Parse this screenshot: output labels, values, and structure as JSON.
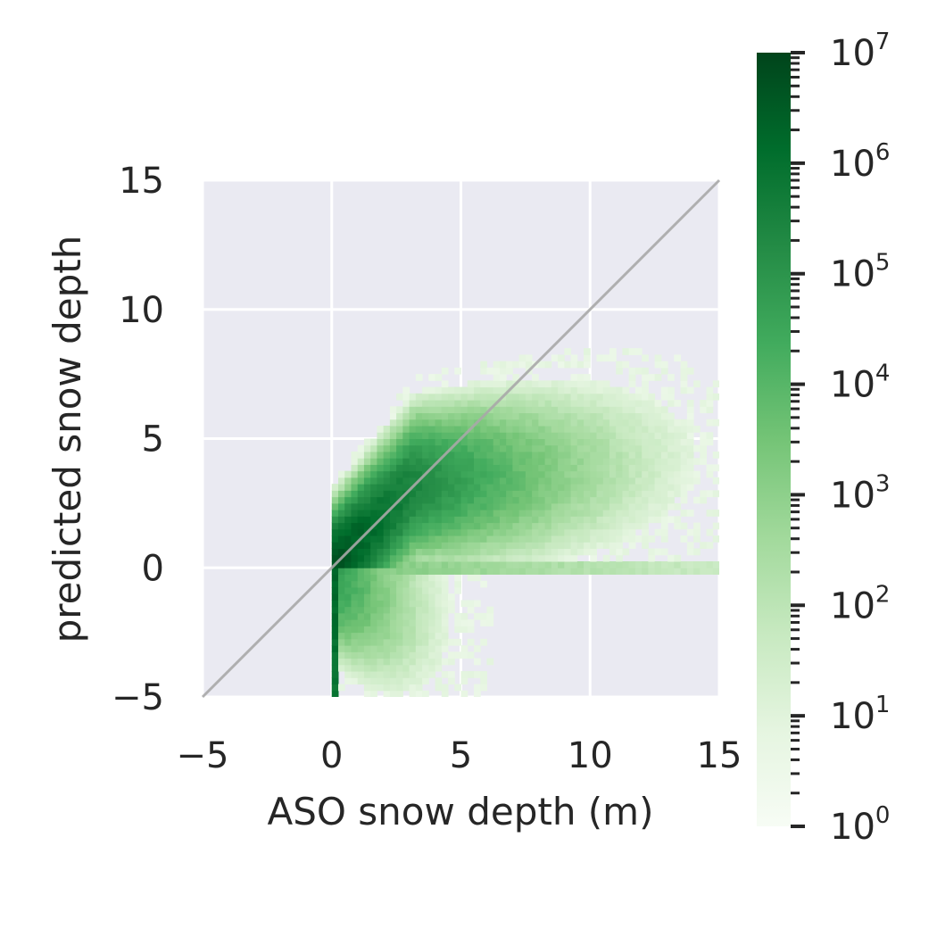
{
  "chart_data": {
    "type": "heatmap",
    "subtype": "2d-histogram",
    "title": "",
    "xlabel": "ASO snow depth (m)",
    "ylabel": "predicted snow depth",
    "xlim": [
      -5,
      15
    ],
    "ylim": [
      -5,
      15
    ],
    "xticks": [
      "−5",
      "0",
      "5",
      "10",
      "15"
    ],
    "yticks": [
      "−5",
      "0",
      "5",
      "10",
      "15"
    ],
    "xtick_values": [
      -5,
      0,
      5,
      10,
      15
    ],
    "ytick_values": [
      -5,
      0,
      5,
      10,
      15
    ],
    "grid": true,
    "reference_line": {
      "type": "1:1",
      "x": [
        -5,
        15
      ],
      "y": [
        -5,
        15
      ],
      "color": "#a9a9a9"
    },
    "colormap": "Greens",
    "colorbar": {
      "scale": "log",
      "range": [
        1,
        10000000
      ],
      "tick_bases": [
        "10",
        "10",
        "10",
        "10",
        "10",
        "10",
        "10",
        "10"
      ],
      "tick_exponents": [
        "0",
        "1",
        "2",
        "3",
        "4",
        "5",
        "6",
        "7"
      ],
      "tick_values": [
        1,
        10,
        100,
        1000,
        10000,
        100000,
        1000000,
        10000000
      ]
    },
    "density_description": "counts concentrated near origin and along 1:1 line up to ~4 m, plateau of predictions around 2-4 m for large observed depths, vertical band at x=0 for negative predictions",
    "bins": 0.25
  },
  "colors": {
    "axes_face": "#eaeaf2",
    "grid": "#ffffff",
    "cmap_low": "#f7fcf5",
    "cmap_high": "#00441b"
  }
}
